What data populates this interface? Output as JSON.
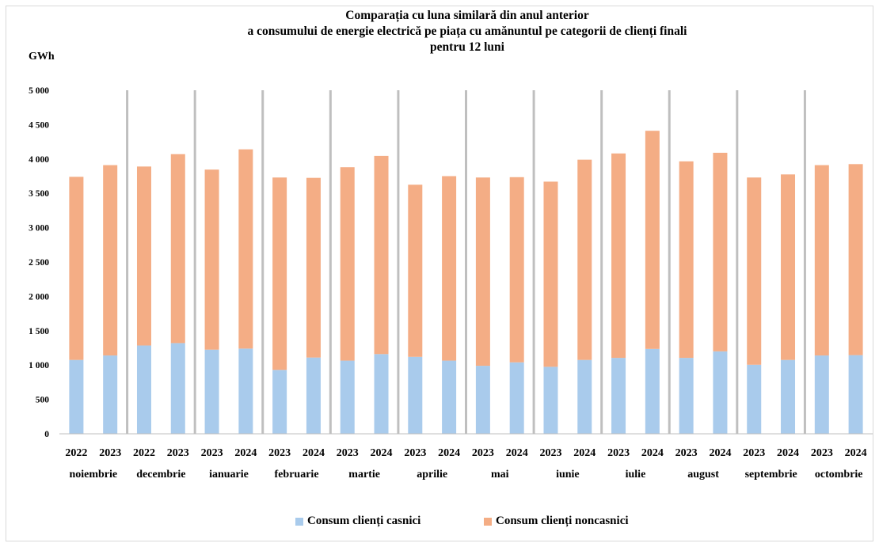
{
  "chart_data": {
    "type": "bar",
    "stacked": true,
    "title_lines": [
      "Comparația cu luna similară din anul anterior",
      "a consumului de energie electrică pe piața cu amănuntul pe categorii de clienți finali",
      "pentru 12 luni"
    ],
    "ylabel": "GWh",
    "ylim": [
      0,
      5000
    ],
    "yticks": [
      "0",
      "500",
      "1 000",
      "1 500",
      "2 000",
      "2 500",
      "3 000",
      "3 500",
      "4 000",
      "4 500",
      "5 000"
    ],
    "months": [
      "noiembrie",
      "decembrie",
      "ianuarie",
      "februarie",
      "martie",
      "aprilie",
      "mai",
      "iunie",
      "iulie",
      "august",
      "septembrie",
      "octombrie"
    ],
    "years": [
      [
        "2022",
        "2023"
      ],
      [
        "2022",
        "2023"
      ],
      [
        "2023",
        "2024"
      ],
      [
        "2023",
        "2024"
      ],
      [
        "2023",
        "2024"
      ],
      [
        "2023",
        "2024"
      ],
      [
        "2023",
        "2024"
      ],
      [
        "2023",
        "2024"
      ],
      [
        "2023",
        "2024"
      ],
      [
        "2023",
        "2024"
      ],
      [
        "2023",
        "2024"
      ],
      [
        "2023",
        "2024"
      ]
    ],
    "series": [
      {
        "name": "Consum clienți casnici",
        "color": "#a9cbec",
        "values": [
          1075,
          1140,
          1285,
          1320,
          1225,
          1240,
          930,
          1110,
          1065,
          1160,
          1120,
          1065,
          990,
          1040,
          975,
          1075,
          1105,
          1235,
          1105,
          1200,
          1005,
          1075,
          1140,
          1145
        ]
      },
      {
        "name": "Consum clienți noncasnici",
        "color": "#f4ad85",
        "values": [
          2665,
          2770,
          2605,
          2750,
          2620,
          2900,
          2800,
          2615,
          2815,
          2885,
          2505,
          2685,
          2740,
          2695,
          2695,
          2915,
          2975,
          3175,
          2860,
          2890,
          2725,
          2700,
          2770,
          2780
        ]
      }
    ],
    "grid": false,
    "legend_position": "bottom"
  }
}
